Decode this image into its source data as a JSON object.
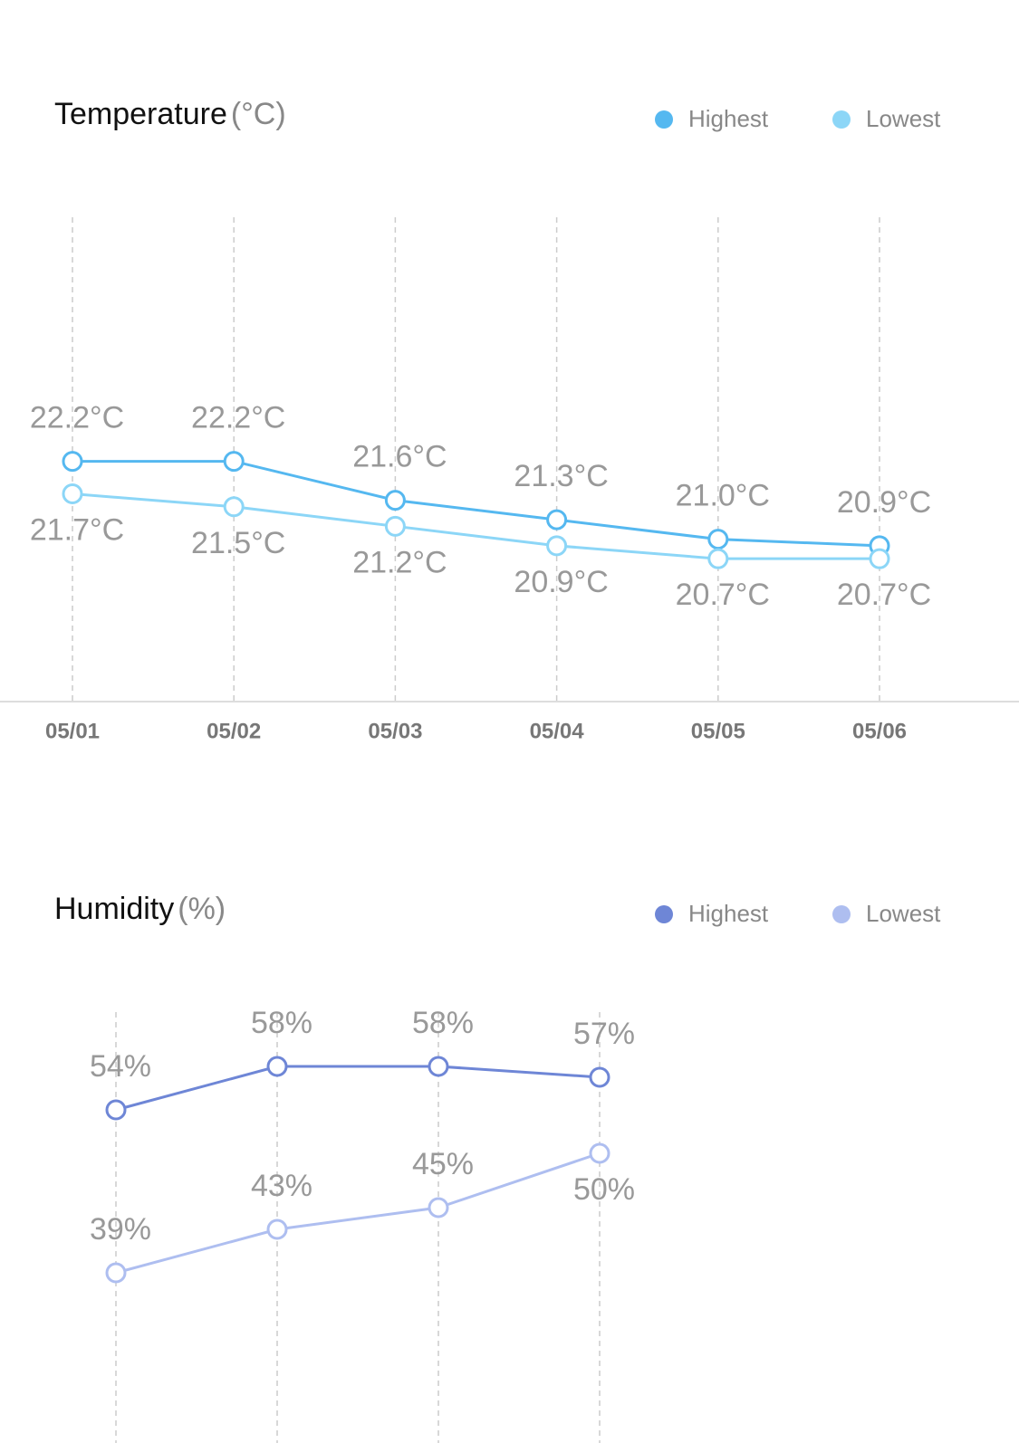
{
  "chart_data": [
    {
      "type": "line",
      "title": "Temperature",
      "unit": "(°C)",
      "categories": [
        "05/01",
        "05/02",
        "05/03",
        "05/04",
        "05/05",
        "05/06"
      ],
      "series": [
        {
          "name": "Highest",
          "color": "#55b8f0",
          "values": [
            22.2,
            22.2,
            21.6,
            21.3,
            21.0,
            20.9
          ],
          "value_labels": [
            "22.2°C",
            "22.2°C",
            "21.6°C",
            "21.3°C",
            "21.0°C",
            "20.9°C"
          ]
        },
        {
          "name": "Lowest",
          "color": "#8cd6f7",
          "values": [
            21.7,
            21.5,
            21.2,
            20.9,
            20.7,
            20.7
          ],
          "value_labels": [
            "21.7°C",
            "21.5°C",
            "21.2°C",
            "20.9°C",
            "20.7°C",
            "20.7°C"
          ]
        }
      ],
      "ylim": [
        18.5,
        26
      ],
      "grid": true
    },
    {
      "type": "line",
      "title": "Humidity",
      "unit": "(%)",
      "series": [
        {
          "name": "Highest",
          "color": "#6e86d6",
          "values": [
            54,
            58,
            58,
            57
          ],
          "value_labels": [
            "54%",
            "58%",
            "58%",
            "57%"
          ]
        },
        {
          "name": "Lowest",
          "color": "#aebef0",
          "values": [
            39,
            43,
            45,
            50
          ],
          "value_labels": [
            "39%",
            "43%",
            "45%",
            "50%"
          ]
        }
      ],
      "ylim": [
        23,
        63
      ],
      "grid": true
    }
  ]
}
